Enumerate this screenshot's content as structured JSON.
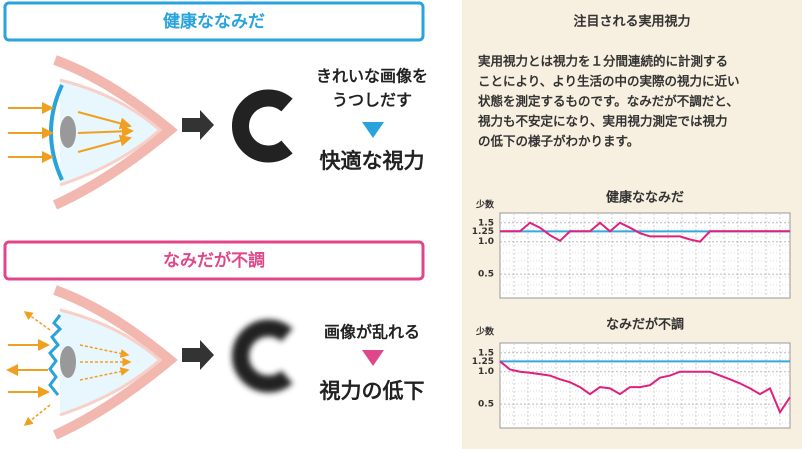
{
  "left": {
    "healthy": {
      "title": "健康ななみだ",
      "caption_lines": [
        "きれいな画像を",
        "うつしだす"
      ],
      "result": "快適な視力"
    },
    "unhealthy": {
      "title": "なみだが不調",
      "caption": "画像が乱れる",
      "result": "視力の低下"
    }
  },
  "panel": {
    "title": "注目される実用視力",
    "text": [
      "実用視力とは視力を１分間連続的に計測する",
      "ことにより、より生活の中の実際の視力に近い",
      "状態を測定するものです。なみだが不調だと、",
      "視力も不安定になり、実用視力測定では視力",
      "の低下の様子がわかります。"
    ]
  },
  "chart_data": [
    {
      "type": "line",
      "title": "健康ななみだ",
      "y_label": "少数",
      "color": "#e0207f",
      "values": [
        1.25,
        1.25,
        1.25,
        1.5,
        1.35,
        1.15,
        1.02,
        1.25,
        1.25,
        1.25,
        1.5,
        1.25,
        1.5,
        1.35,
        1.2,
        1.12,
        1.12,
        1.12,
        1.12,
        1.05,
        1.0,
        1.25,
        1.25,
        1.25,
        1.25,
        1.25,
        1.25,
        1.25,
        1.25,
        1.25
      ],
      "reference": {
        "value": 1.25,
        "color": "#35a8dc"
      },
      "ylim": [
        0.3,
        1.85
      ],
      "log_scale": true,
      "yticks": [
        1.5,
        1.25,
        {
          "value": 1,
          "label": "1.0"
        },
        0.5
      ]
    },
    {
      "type": "line",
      "title": "なみだが不調",
      "y_label": "少数",
      "color": "#e0207f",
      "values": [
        1.25,
        1.05,
        1.0,
        0.98,
        0.95,
        0.92,
        0.85,
        0.8,
        0.72,
        0.62,
        0.72,
        0.7,
        0.62,
        0.72,
        0.72,
        0.75,
        0.88,
        0.92,
        1.0,
        1.0,
        1.0,
        1.0,
        0.92,
        0.85,
        0.78,
        0.7,
        0.62,
        0.7,
        0.42,
        0.58
      ],
      "reference": {
        "value": 1.25,
        "color": "#35a8dc"
      },
      "ylim": [
        0.3,
        1.85
      ],
      "log_scale": true,
      "yticks": [
        1.5,
        1.25,
        {
          "value": 1,
          "label": "1.0"
        },
        0.5
      ]
    }
  ]
}
